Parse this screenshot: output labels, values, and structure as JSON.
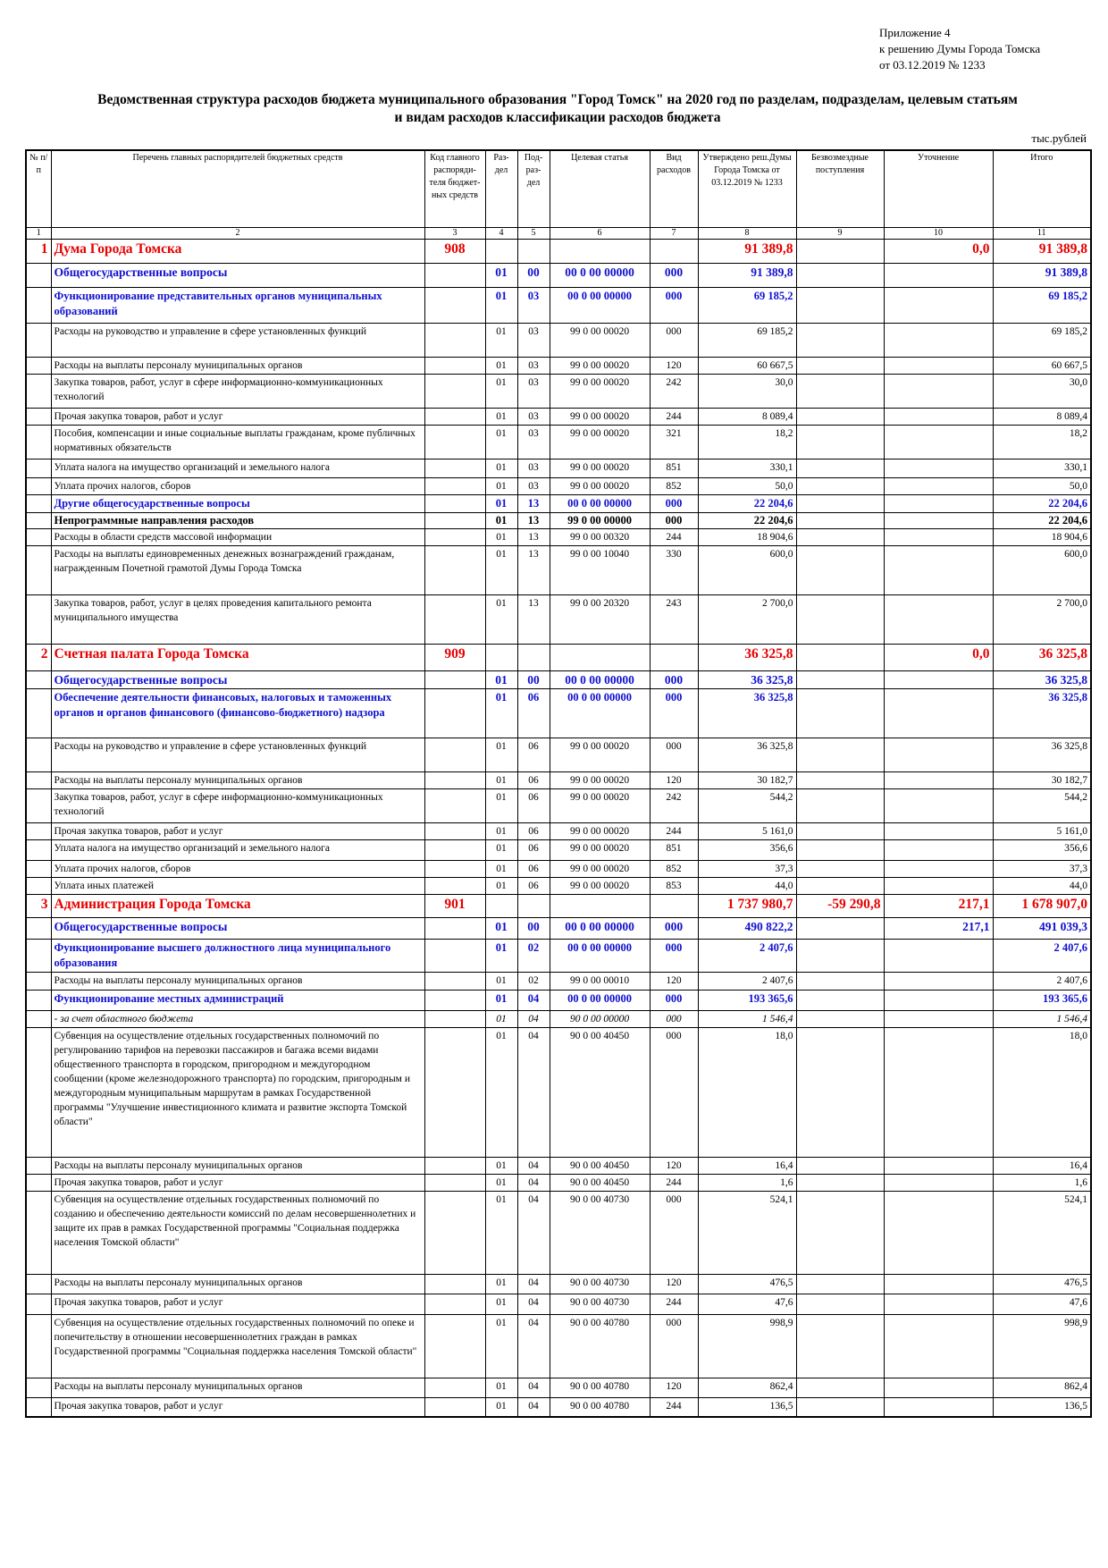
{
  "header": {
    "appendix_lines": [
      "Приложение 4",
      "к решению Думы Города Томска",
      "от 03.12.2019 № 1233"
    ],
    "title_lines": [
      "Ведомственная структура расходов бюджета муниципального образования \"Город Томск\" на 2020 год по разделам, подразделам, целевым статьям",
      "и видам расходов классификации расходов бюджета"
    ],
    "units": "тыс.рублей"
  },
  "columns": [
    "№ п/п",
    "Перечень главных распорядителей бюджетных средств",
    "Код главного распоряди-теля бюджет-ных средств",
    "Раз-дел",
    "Под-раз-дел",
    "Целевая статья",
    "Вид расходов",
    "Утверждено реш.Думы Города Томска от 03.12.2019 № 1233",
    "Безвозмездные поступления",
    "Уточнение",
    "Итого"
  ],
  "column_numbers": [
    "1",
    "2",
    "3",
    "4",
    "5",
    "6",
    "7",
    "8",
    "9",
    "10",
    "11"
  ],
  "rows": [
    {
      "lvl": "lvl0",
      "h": 27,
      "n": "1",
      "name": "Дума Города Томска",
      "code": "908",
      "razd": "",
      "podr": "",
      "cst": "",
      "vid": "",
      "appr": "91 389,8",
      "bez": "",
      "utoch": "0,0",
      "itogo": "91 389,8"
    },
    {
      "lvl": "lvl1",
      "h": 27,
      "n": "",
      "name": "Общегосударственные вопросы",
      "code": "",
      "razd": "01",
      "podr": "00",
      "cst": "00 0 00 00000",
      "vid": "000",
      "appr": "91 389,8",
      "bez": "",
      "utoch": "",
      "itogo": "91 389,8"
    },
    {
      "lvl": "lvl2",
      "h": 40,
      "n": "",
      "name": "Функционирование представительных органов муниципальных образований",
      "code": "",
      "razd": "01",
      "podr": "03",
      "cst": "00 0 00 00000",
      "vid": "000",
      "appr": "69 185,2",
      "bez": "",
      "utoch": "",
      "itogo": "69 185,2"
    },
    {
      "lvl": "lvl3",
      "h": 38,
      "n": "",
      "name": "Расходы на руководство и управление в сфере установленных функций",
      "code": "",
      "razd": "01",
      "podr": "03",
      "cst": "99 0 00 00020",
      "vid": "000",
      "appr": "69 185,2",
      "bez": "",
      "utoch": "",
      "itogo": "69 185,2"
    },
    {
      "lvl": "lvl3",
      "h": 17,
      "n": "",
      "name": "Расходы на выплаты персоналу муниципальных органов",
      "code": "",
      "razd": "01",
      "podr": "03",
      "cst": "99 0 00 00020",
      "vid": "120",
      "appr": "60 667,5",
      "bez": "",
      "utoch": "",
      "itogo": "60 667,5"
    },
    {
      "lvl": "lvl3",
      "h": 38,
      "n": "",
      "name": "Закупка товаров, работ, услуг в сфере информационно-коммуникационных технологий",
      "code": "",
      "razd": "01",
      "podr": "03",
      "cst": "99 0 00 00020",
      "vid": "242",
      "appr": "30,0",
      "bez": "",
      "utoch": "",
      "itogo": "30,0"
    },
    {
      "lvl": "lvl3",
      "h": 17,
      "n": "",
      "name": "Прочая закупка товаров, работ и услуг",
      "code": "",
      "razd": "01",
      "podr": "03",
      "cst": "99 0 00 00020",
      "vid": "244",
      "appr": "8 089,4",
      "bez": "",
      "utoch": "",
      "itogo": "8 089,4"
    },
    {
      "lvl": "lvl3",
      "h": 38,
      "n": "",
      "name": "Пособия, компенсации и иные социальные выплаты гражданам, кроме публичных нормативных обязательств",
      "code": "",
      "razd": "01",
      "podr": "03",
      "cst": "99 0 00 00020",
      "vid": "321",
      "appr": "18,2",
      "bez": "",
      "utoch": "",
      "itogo": "18,2"
    },
    {
      "lvl": "lvl3",
      "h": 21,
      "n": "",
      "name": "Уплата налога на имущество организаций и земельного налога",
      "code": "",
      "razd": "01",
      "podr": "03",
      "cst": "99 0 00 00020",
      "vid": "851",
      "appr": "330,1",
      "bez": "",
      "utoch": "",
      "itogo": "330,1"
    },
    {
      "lvl": "lvl3",
      "h": 17,
      "n": "",
      "name": "Уплата прочих налогов, сборов",
      "code": "",
      "razd": "01",
      "podr": "03",
      "cst": "99 0 00 00020",
      "vid": "852",
      "appr": "50,0",
      "bez": "",
      "utoch": "",
      "itogo": "50,0"
    },
    {
      "lvl": "lvl2",
      "h": 17,
      "n": "",
      "name": "Другие общегосударственные вопросы",
      "code": "",
      "razd": "01",
      "podr": "13",
      "cst": "00 0 00 00000",
      "vid": "000",
      "appr": "22 204,6",
      "bez": "",
      "utoch": "",
      "itogo": "22 204,6"
    },
    {
      "lvl": "lvlb",
      "h": 17,
      "n": "",
      "name": "Непрограммные направления расходов",
      "code": "",
      "razd": "01",
      "podr": "13",
      "cst": "99 0 00 00000",
      "vid": "000",
      "appr": "22 204,6",
      "bez": "",
      "utoch": "",
      "itogo": "22 204,6"
    },
    {
      "lvl": "lvl3",
      "h": 15,
      "n": "",
      "name": "Расходы в области средств массовой информации",
      "code": "",
      "razd": "01",
      "podr": "13",
      "cst": "99 0 00 00320",
      "vid": "244",
      "appr": "18 904,6",
      "bez": "",
      "utoch": "",
      "itogo": "18 904,6"
    },
    {
      "lvl": "lvl3",
      "h": 55,
      "n": "",
      "name": "Расходы на выплаты единовременных денежных вознаграждений гражданам, награжденным Почетной грамотой Думы Города Томска",
      "code": "",
      "razd": "01",
      "podr": "13",
      "cst": "99 0 00 10040",
      "vid": "330",
      "appr": "600,0",
      "bez": "",
      "utoch": "",
      "itogo": "600,0"
    },
    {
      "lvl": "lvl3",
      "h": 55,
      "n": "",
      "name": "Закупка товаров, работ, услуг в целях проведения капитального ремонта муниципального имущества",
      "code": "",
      "razd": "01",
      "podr": "13",
      "cst": "99 0 00 20320",
      "vid": "243",
      "appr": "2 700,0",
      "bez": "",
      "utoch": "",
      "itogo": "2 700,0"
    },
    {
      "lvl": "lvl0",
      "h": 30,
      "n": "2",
      "name": "Счетная палата Города Томска",
      "code": "909",
      "razd": "",
      "podr": "",
      "cst": "",
      "vid": "",
      "appr": "36 325,8",
      "bez": "",
      "utoch": "0,0",
      "itogo": "36 325,8"
    },
    {
      "lvl": "lvl1",
      "h": 17,
      "n": "",
      "name": "Общегосударственные вопросы",
      "code": "",
      "razd": "01",
      "podr": "00",
      "cst": "00 0 00 00000",
      "vid": "000",
      "appr": "36 325,8",
      "bez": "",
      "utoch": "",
      "itogo": "36 325,8"
    },
    {
      "lvl": "lvl2",
      "h": 55,
      "n": "",
      "name": "Обеспечение деятельности финансовых, налоговых и таможенных органов и органов финансового (финансово-бюджетного) надзора",
      "code": "",
      "razd": "01",
      "podr": "06",
      "cst": "00 0 00 00000",
      "vid": "000",
      "appr": "36 325,8",
      "bez": "",
      "utoch": "",
      "itogo": "36 325,8"
    },
    {
      "lvl": "lvl3",
      "h": 38,
      "n": "",
      "name": "Расходы на руководство и управление в сфере установленных функций",
      "code": "",
      "razd": "01",
      "podr": "06",
      "cst": "99 0 00 00020",
      "vid": "000",
      "appr": "36 325,8",
      "bez": "",
      "utoch": "",
      "itogo": "36 325,8"
    },
    {
      "lvl": "lvl3",
      "h": 17,
      "n": "",
      "name": "Расходы на выплаты персоналу муниципальных органов",
      "code": "",
      "razd": "01",
      "podr": "06",
      "cst": "99 0 00 00020",
      "vid": "120",
      "appr": "30 182,7",
      "bez": "",
      "utoch": "",
      "itogo": "30 182,7"
    },
    {
      "lvl": "lvl3",
      "h": 38,
      "n": "",
      "name": "Закупка товаров, работ, услуг в сфере информационно-коммуникационных технологий",
      "code": "",
      "razd": "01",
      "podr": "06",
      "cst": "99 0 00 00020",
      "vid": "242",
      "appr": "544,2",
      "bez": "",
      "utoch": "",
      "itogo": "544,2"
    },
    {
      "lvl": "lvl3",
      "h": 17,
      "n": "",
      "name": "Прочая закупка товаров, работ и услуг",
      "code": "",
      "razd": "01",
      "podr": "06",
      "cst": "99 0 00 00020",
      "vid": "244",
      "appr": "5 161,0",
      "bez": "",
      "utoch": "",
      "itogo": "5 161,0"
    },
    {
      "lvl": "lvl3",
      "h": 23,
      "n": "",
      "name": "Уплата налога на имущество организаций и земельного налога",
      "code": "",
      "razd": "01",
      "podr": "06",
      "cst": "99 0 00 00020",
      "vid": "851",
      "appr": "356,6",
      "bez": "",
      "utoch": "",
      "itogo": "356,6"
    },
    {
      "lvl": "lvl3",
      "h": 16,
      "n": "",
      "name": "Уплата прочих налогов, сборов",
      "code": "",
      "razd": "01",
      "podr": "06",
      "cst": "99 0 00 00020",
      "vid": "852",
      "appr": "37,3",
      "bez": "",
      "utoch": "",
      "itogo": "37,3"
    },
    {
      "lvl": "lvl3",
      "h": 15,
      "n": "",
      "name": "Уплата иных платежей",
      "code": "",
      "razd": "01",
      "podr": "06",
      "cst": "99 0 00 00020",
      "vid": "853",
      "appr": "44,0",
      "bez": "",
      "utoch": "",
      "itogo": "44,0"
    },
    {
      "lvl": "lvl0",
      "h": 26,
      "n": "3",
      "name": "Администрация Города Томска",
      "code": "901",
      "razd": "",
      "podr": "",
      "cst": "",
      "vid": "",
      "appr": "1 737 980,7",
      "bez": "-59 290,8",
      "utoch": "217,1",
      "itogo": "1 678 907,0"
    },
    {
      "lvl": "lvl1",
      "h": 24,
      "n": "",
      "name": "Общегосударственные вопросы",
      "code": "",
      "razd": "01",
      "podr": "00",
      "cst": "00 0 00 00000",
      "vid": "000",
      "appr": "490 822,2",
      "bez": "",
      "utoch": "217,1",
      "itogo": "491 039,3"
    },
    {
      "lvl": "lvl2",
      "h": 35,
      "n": "",
      "name": "Функционирование высшего должностного лица муниципального образования",
      "code": "",
      "razd": "01",
      "podr": "02",
      "cst": "00 0 00 00000",
      "vid": "000",
      "appr": "2 407,6",
      "bez": "",
      "utoch": "",
      "itogo": "2 407,6"
    },
    {
      "lvl": "lvl3",
      "h": 20,
      "n": "",
      "name": "Расходы на выплаты персоналу муниципальных органов",
      "code": "",
      "razd": "01",
      "podr": "02",
      "cst": "99 0 00 00010",
      "vid": "120",
      "appr": "2 407,6",
      "bez": "",
      "utoch": "",
      "itogo": "2 407,6"
    },
    {
      "lvl": "lvl2",
      "h": 23,
      "n": "",
      "name": "Функционирование местных администраций",
      "code": "",
      "razd": "01",
      "podr": "04",
      "cst": "00 0 00 00000",
      "vid": "000",
      "appr": "193 365,6",
      "bez": "",
      "utoch": "",
      "itogo": "193 365,6"
    },
    {
      "lvl": "lvlit",
      "h": 17,
      "n": "",
      "name": "- за счет областного бюджета",
      "code": "",
      "razd": "01",
      "podr": "04",
      "cst": "90 0 00 00000",
      "vid": "000",
      "appr": "1 546,4",
      "bez": "",
      "utoch": "",
      "itogo": "1 546,4"
    },
    {
      "lvl": "lvl3",
      "h": 145,
      "n": "",
      "name": "Субвенция на осуществление отдельных государственных полномочий по регулированию тарифов на перевозки пассажиров и багажа всеми видами общественного транспорта в городском, пригородном и междугородном сообщении (кроме железнодорожного транспорта) по городским, пригородным и междугородным муниципальным маршрутам в рамках Государственной программы \"Улучшение инвестиционного климата и развитие экспорта Томской области\"",
      "code": "",
      "razd": "01",
      "podr": "04",
      "cst": "90 0 00 40450",
      "vid": "000",
      "appr": "18,0",
      "bez": "",
      "utoch": "",
      "itogo": "18,0"
    },
    {
      "lvl": "lvl3",
      "h": 18,
      "n": "",
      "name": "Расходы на выплаты персоналу муниципальных органов",
      "code": "",
      "razd": "01",
      "podr": "04",
      "cst": "90 0 00 40450",
      "vid": "120",
      "appr": "16,4",
      "bez": "",
      "utoch": "",
      "itogo": "16,4"
    },
    {
      "lvl": "lvl3",
      "h": 16,
      "n": "",
      "name": "Прочая закупка товаров, работ и услуг",
      "code": "",
      "razd": "01",
      "podr": "04",
      "cst": "90 0 00 40450",
      "vid": "244",
      "appr": "1,6",
      "bez": "",
      "utoch": "",
      "itogo": "1,6"
    },
    {
      "lvl": "lvl3",
      "h": 93,
      "n": "",
      "name": "Субвенция на осуществление отдельных государственных полномочий по созданию и обеспечению деятельности комиссий по делам несовершеннолетних и защите их прав в рамках Государственной программы \"Социальная поддержка населения Томской области\"",
      "code": "",
      "razd": "01",
      "podr": "04",
      "cst": "90 0 00 40730",
      "vid": "000",
      "appr": "524,1",
      "bez": "",
      "utoch": "",
      "itogo": "524,1"
    },
    {
      "lvl": "lvl3",
      "h": 22,
      "n": "",
      "name": "Расходы на выплаты персоналу муниципальных органов",
      "code": "",
      "razd": "01",
      "podr": "04",
      "cst": "90 0 00 40730",
      "vid": "120",
      "appr": "476,5",
      "bez": "",
      "utoch": "",
      "itogo": "476,5"
    },
    {
      "lvl": "lvl3",
      "h": 23,
      "n": "",
      "name": "Прочая закупка товаров, работ и услуг",
      "code": "",
      "razd": "01",
      "podr": "04",
      "cst": "90 0 00 40730",
      "vid": "244",
      "appr": "47,6",
      "bez": "",
      "utoch": "",
      "itogo": "47,6"
    },
    {
      "lvl": "lvl3",
      "h": 71,
      "n": "",
      "name": "Субвенция на осуществление отдельных государственных полномочий по опеке и попечительству в отношении несовершеннолетних граждан в рамках Государственной программы \"Социальная поддержка населения Томской области\"",
      "code": "",
      "razd": "01",
      "podr": "04",
      "cst": "90 0 00 40780",
      "vid": "000",
      "appr": "998,9",
      "bez": "",
      "utoch": "",
      "itogo": "998,9"
    },
    {
      "lvl": "lvl3",
      "h": 22,
      "n": "",
      "name": "Расходы на выплаты персоналу муниципальных органов",
      "code": "",
      "razd": "01",
      "podr": "04",
      "cst": "90 0 00 40780",
      "vid": "120",
      "appr": "862,4",
      "bez": "",
      "utoch": "",
      "itogo": "862,4"
    },
    {
      "lvl": "lvl3",
      "h": 22,
      "n": "",
      "name": "Прочая закупка товаров, работ и услуг",
      "code": "",
      "razd": "01",
      "podr": "04",
      "cst": "90 0 00 40780",
      "vid": "244",
      "appr": "136,5",
      "bez": "",
      "utoch": "",
      "itogo": "136,5"
    }
  ]
}
